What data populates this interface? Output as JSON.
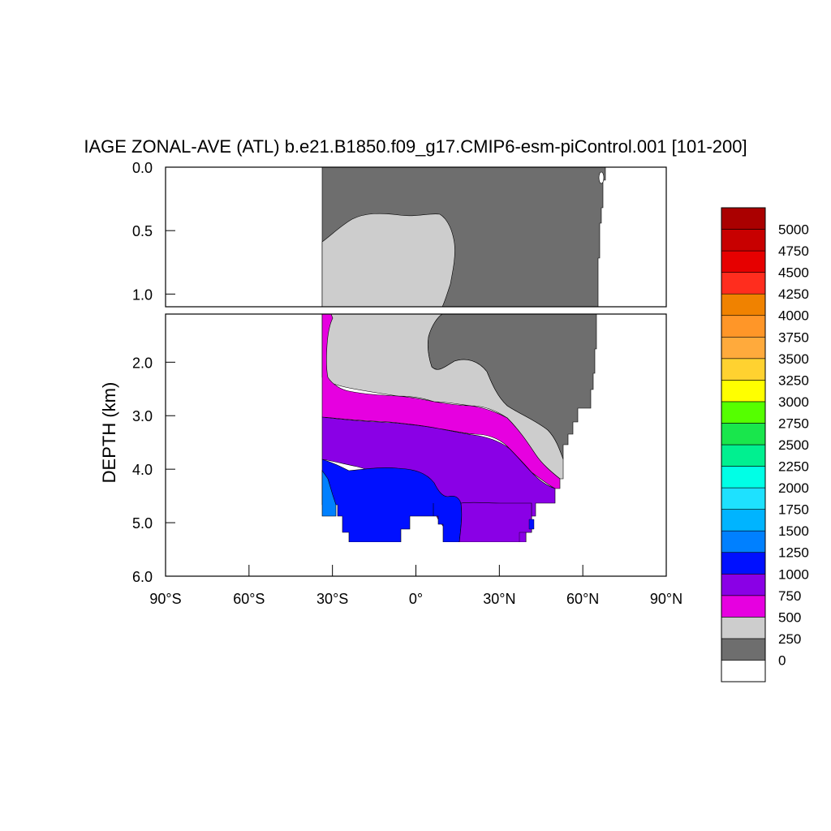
{
  "chart_data": {
    "type": "contour",
    "title": "IAGE ZONAL-AVE (ATL) b.e21.B1850.f09_g17.CMIP6-esm-piControl.001 [101-200]",
    "xlabel": "",
    "ylabel": "DEPTH (km)",
    "x_ticks": [
      "90°S",
      "60°S",
      "30°S",
      "0°",
      "30°N",
      "60°N",
      "90°N"
    ],
    "x_tick_values": [
      -90,
      -60,
      -30,
      0,
      30,
      60,
      90
    ],
    "xlim": [
      -90,
      90
    ],
    "upper_panel": {
      "ylim": [
        0,
        1.1
      ],
      "y_ticks": [
        "0.0",
        "0.5",
        "1.0"
      ],
      "y_tick_values": [
        0,
        0.5,
        1.0
      ]
    },
    "lower_panel": {
      "ylim": [
        1.1,
        6.0
      ],
      "y_ticks": [
        "2.0",
        "3.0",
        "4.0",
        "5.0",
        "6.0"
      ],
      "y_tick_values": [
        2,
        3,
        4,
        5,
        6
      ]
    },
    "colorbar": {
      "levels": [
        "0",
        "250",
        "500",
        "750",
        "1000",
        "1250",
        "1500",
        "1750",
        "2000",
        "2250",
        "2500",
        "2750",
        "3000",
        "3250",
        "3500",
        "3750",
        "4000",
        "4250",
        "4500",
        "4750",
        "5000"
      ],
      "colors": [
        "#ffffff",
        "#6e6e6e",
        "#cdcdcd",
        "#e600e0",
        "#8a00e6",
        "#0010ff",
        "#0080ff",
        "#00b4ff",
        "#1ee1ff",
        "#00ffe6",
        "#00f090",
        "#19e64c",
        "#55ff00",
        "#ffff00",
        "#ffd230",
        "#ffaa3c",
        "#ff9628",
        "#f08200",
        "#ff2d1e",
        "#e60000",
        "#c80000",
        "#aa0000"
      ]
    },
    "region_colors": {
      "0-250": "#6e6e6e",
      "250-500": "#cdcdcd",
      "500-750": "#e600e0",
      "750-1000": "#8a00e6",
      "1000-1250": "#0010ff",
      "1250-1500": "#0080ff"
    }
  }
}
